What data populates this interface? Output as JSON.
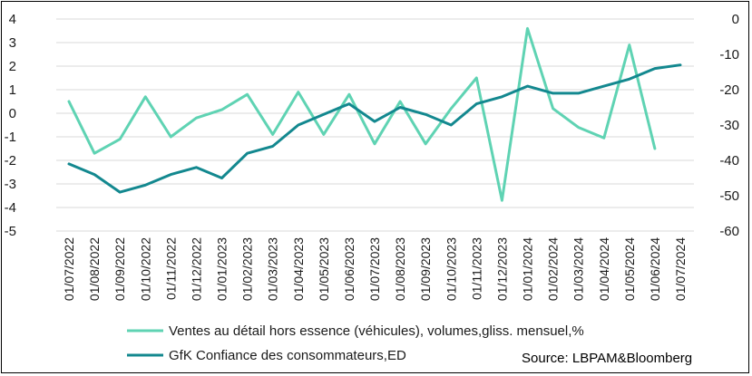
{
  "chart_data": {
    "type": "line",
    "title": "",
    "source": "Source: LBPAM&Bloomberg",
    "categories": [
      "01/07/2022",
      "01/08/2022",
      "01/09/2022",
      "01/10/2022",
      "01/11/2022",
      "01/12/2022",
      "01/01/2023",
      "01/02/2023",
      "01/03/2023",
      "01/04/2023",
      "01/05/2023",
      "01/06/2023",
      "01/07/2023",
      "01/08/2023",
      "01/09/2023",
      "01/10/2023",
      "01/11/2023",
      "01/12/2023",
      "01/01/2024",
      "01/02/2024",
      "01/03/2024",
      "01/04/2024",
      "01/05/2024",
      "01/06/2024",
      "01/07/2024"
    ],
    "y_left": {
      "min": -5,
      "max": 4,
      "ticks": [
        "4",
        "3",
        "2",
        "1",
        "0",
        "-1",
        "-2",
        "-3",
        "-4",
        "-5"
      ]
    },
    "y_right": {
      "min": -60,
      "max": 0,
      "ticks": [
        "0",
        "-10",
        "-20",
        "-30",
        "-40",
        "-50",
        "-60"
      ]
    },
    "grid": true,
    "legend_position": "bottom",
    "series": [
      {
        "name": "Ventes au détail hors essence (véhicules), volumes,gliss. mensuel,%",
        "axis": "left",
        "color": "#5fd3b3",
        "values": [
          0.5,
          -1.7,
          -1.1,
          0.7,
          -1.0,
          -0.2,
          0.15,
          0.8,
          -0.9,
          0.9,
          -0.9,
          0.8,
          -1.3,
          0.5,
          -1.3,
          0.2,
          1.5,
          -3.7,
          3.6,
          0.2,
          -0.6,
          -1.05,
          2.9,
          -1.5,
          null
        ]
      },
      {
        "name": "GfK Confiance des consommateurs,ED",
        "axis": "right",
        "color": "#13888f",
        "values": [
          -41,
          -44,
          -49,
          -47,
          -44,
          -42,
          -45,
          -38,
          -36,
          -30,
          -27,
          -24,
          -29,
          -25,
          -27,
          -30,
          -24,
          -22,
          -19,
          -21,
          -21,
          -19,
          -17,
          -14,
          -13
        ]
      }
    ]
  }
}
